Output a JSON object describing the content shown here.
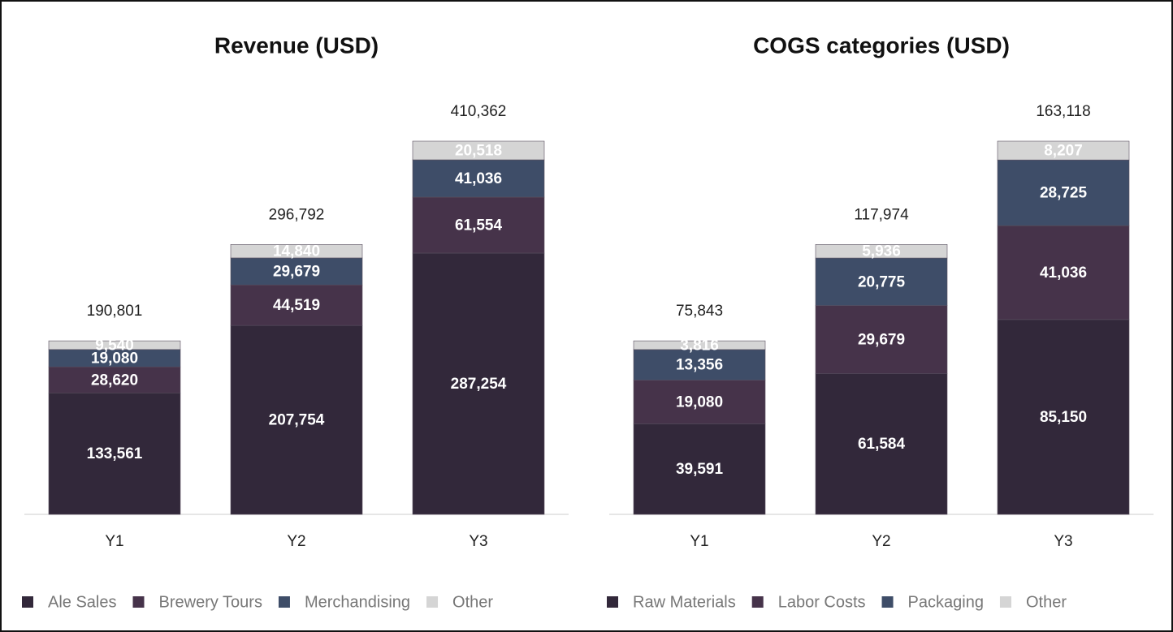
{
  "chart_data": [
    {
      "type": "bar",
      "stacked": true,
      "title": "Revenue (USD)",
      "categories": [
        "Y1",
        "Y2",
        "Y3"
      ],
      "series": [
        {
          "name": "Ale Sales",
          "color": "#32283a",
          "values": [
            133561,
            207754,
            287254
          ],
          "value_labels": [
            "133,561",
            "207,754",
            "287,254"
          ]
        },
        {
          "name": "Brewery Tours",
          "color": "#46334a",
          "values": [
            28620,
            44519,
            61554
          ],
          "value_labels": [
            "28,620",
            "44,519",
            "61,554"
          ]
        },
        {
          "name": "Merchandising",
          "color": "#3e4d68",
          "values": [
            19080,
            29679,
            41036
          ],
          "value_labels": [
            "19,080",
            "29,679",
            "41,036"
          ]
        },
        {
          "name": "Other",
          "color": "#d5d5d5",
          "values": [
            9540,
            14840,
            20518
          ],
          "value_labels": [
            "9,540",
            "14,840",
            "20,518"
          ]
        }
      ],
      "totals": [
        190801,
        296792,
        410362
      ],
      "total_labels": [
        "190,801",
        "296,792",
        "410,362"
      ],
      "legend": "bottom"
    },
    {
      "type": "bar",
      "stacked": true,
      "title": "COGS categories (USD)",
      "categories": [
        "Y1",
        "Y2",
        "Y3"
      ],
      "series": [
        {
          "name": "Raw Materials",
          "color": "#32283a",
          "values": [
            39591,
            61584,
            85150
          ],
          "value_labels": [
            "39,591",
            "61,584",
            "85,150"
          ]
        },
        {
          "name": "Labor Costs",
          "color": "#46334a",
          "values": [
            19080,
            29679,
            41036
          ],
          "value_labels": [
            "19,080",
            "29,679",
            "41,036"
          ]
        },
        {
          "name": "Packaging",
          "color": "#3e4d68",
          "values": [
            13356,
            20775,
            28725
          ],
          "value_labels": [
            "13,356",
            "20,775",
            "28,725"
          ]
        },
        {
          "name": "Other",
          "color": "#d5d5d5",
          "values": [
            3816,
            5936,
            8207
          ],
          "value_labels": [
            "3,816",
            "5,936",
            "8,207"
          ]
        }
      ],
      "totals": [
        75843,
        117974,
        163118
      ],
      "total_labels": [
        "75,843",
        "117,974",
        "163,118"
      ],
      "legend": "bottom"
    }
  ]
}
